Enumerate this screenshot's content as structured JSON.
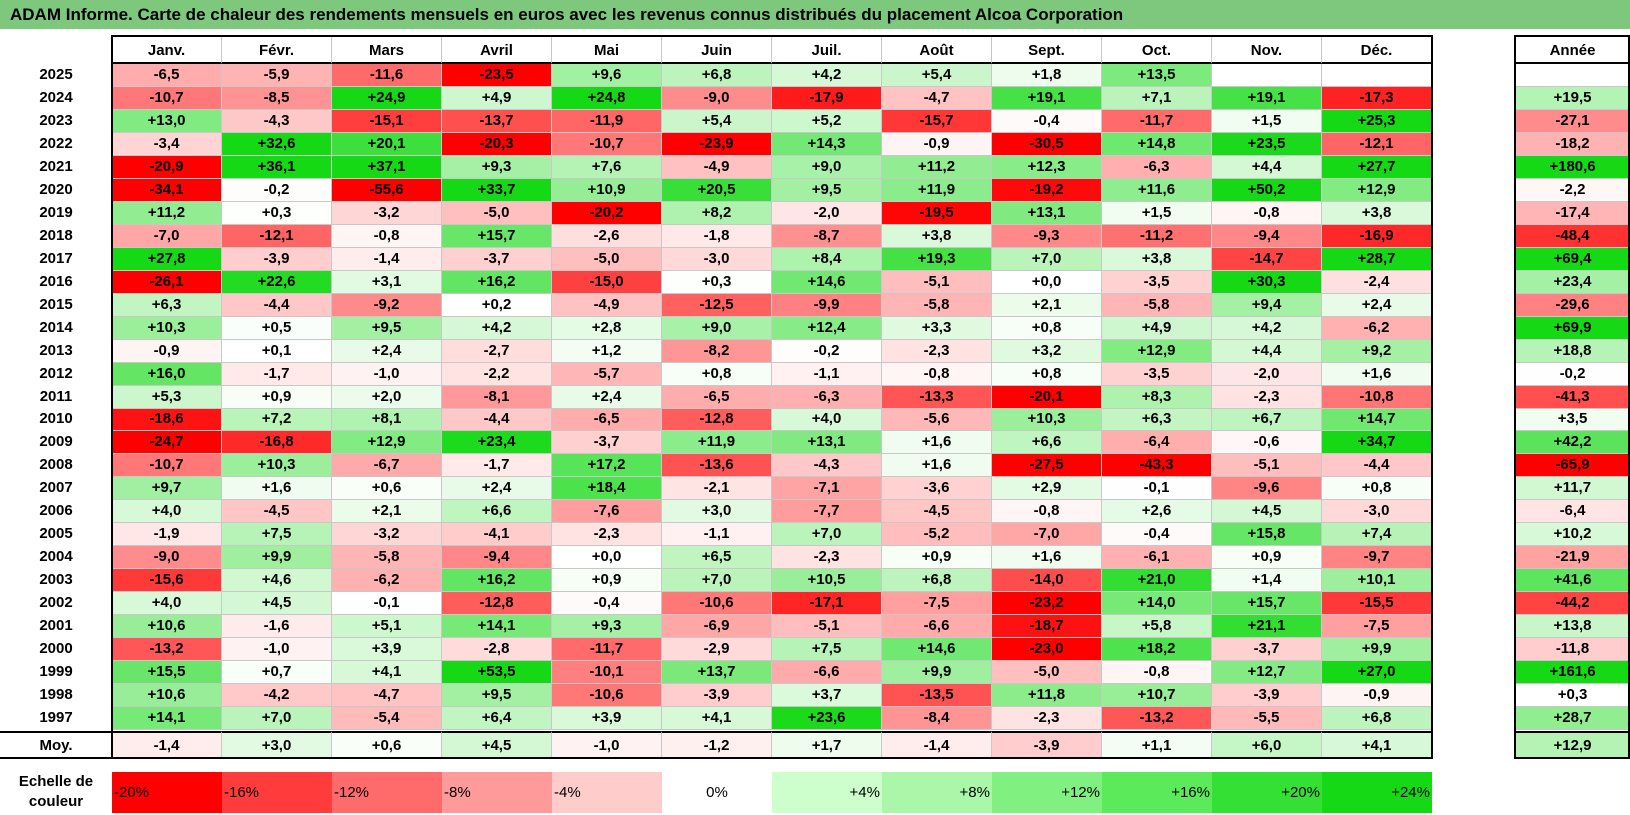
{
  "title": "ADAM Informe. Carte de chaleur des rendements mensuels en euros avec les revenus connus distribués du placement Alcoa Corporation",
  "chart_data": {
    "type": "heatmap",
    "title": "ADAM Informe. Carte de chaleur des rendements mensuels en euros avec les revenus connus distribués du placement Alcoa Corporation",
    "months": [
      "Janv.",
      "Févr.",
      "Mars",
      "Avril",
      "Mai",
      "Juin",
      "Juil.",
      "Août",
      "Sept.",
      "Oct.",
      "Nov.",
      "Déc."
    ],
    "year_header": "Année",
    "rows": [
      {
        "year": "2025",
        "values": [
          "-6,5",
          "-5,9",
          "-11,6",
          "-23,5",
          "+9,6",
          "+6,8",
          "+4,2",
          "+5,4",
          "+1,8",
          "+13,5",
          "",
          ""
        ],
        "annual": ""
      },
      {
        "year": "2024",
        "values": [
          "-10,7",
          "-8,5",
          "+24,9",
          "+4,9",
          "+24,8",
          "-9,0",
          "-17,9",
          "-4,7",
          "+19,1",
          "+7,1",
          "+19,1",
          "-17,3"
        ],
        "annual": "+19,5"
      },
      {
        "year": "2023",
        "values": [
          "+13,0",
          "-4,3",
          "-15,1",
          "-13,7",
          "-11,9",
          "+5,4",
          "+5,2",
          "-15,7",
          "-0,4",
          "-11,7",
          "+1,5",
          "+25,3"
        ],
        "annual": "-27,1"
      },
      {
        "year": "2022",
        "values": [
          "-3,4",
          "+32,6",
          "+20,1",
          "-20,3",
          "-10,7",
          "-23,9",
          "+14,3",
          "-0,9",
          "-30,5",
          "+14,8",
          "+23,5",
          "-12,1"
        ],
        "annual": "-18,2"
      },
      {
        "year": "2021",
        "values": [
          "-20,9",
          "+36,1",
          "+37,1",
          "+9,3",
          "+7,6",
          "-4,9",
          "+9,0",
          "+11,2",
          "+12,3",
          "-6,3",
          "+4,4",
          "+27,7"
        ],
        "annual": "+180,6"
      },
      {
        "year": "2020",
        "values": [
          "-34,1",
          "-0,2",
          "-55,6",
          "+33,7",
          "+10,9",
          "+20,5",
          "+9,5",
          "+11,9",
          "-19,2",
          "+11,6",
          "+50,2",
          "+12,9"
        ],
        "annual": "-2,2"
      },
      {
        "year": "2019",
        "values": [
          "+11,2",
          "+0,3",
          "-3,2",
          "-5,0",
          "-20,2",
          "+8,2",
          "-2,0",
          "-19,5",
          "+13,1",
          "+1,5",
          "-0,8",
          "+3,8"
        ],
        "annual": "-17,4"
      },
      {
        "year": "2018",
        "values": [
          "-7,0",
          "-12,1",
          "-0,8",
          "+15,7",
          "-2,6",
          "-1,8",
          "-8,7",
          "+3,8",
          "-9,3",
          "-11,2",
          "-9,4",
          "-16,9"
        ],
        "annual": "-48,4"
      },
      {
        "year": "2017",
        "values": [
          "+27,8",
          "-3,9",
          "-1,4",
          "-3,7",
          "-5,0",
          "-3,0",
          "+8,4",
          "+19,3",
          "+7,0",
          "+3,8",
          "-14,7",
          "+28,7"
        ],
        "annual": "+69,4"
      },
      {
        "year": "2016",
        "values": [
          "-26,1",
          "+22,6",
          "+3,1",
          "+16,2",
          "-15,0",
          "+0,3",
          "+14,6",
          "-5,1",
          "+0,0",
          "-3,5",
          "+30,3",
          "-2,4"
        ],
        "annual": "+23,4"
      },
      {
        "year": "2015",
        "values": [
          "+6,3",
          "-4,4",
          "-9,2",
          "+0,2",
          "-4,9",
          "-12,5",
          "-9,9",
          "-5,8",
          "+2,1",
          "-5,8",
          "+9,4",
          "+2,4"
        ],
        "annual": "-29,6"
      },
      {
        "year": "2014",
        "values": [
          "+10,3",
          "+0,5",
          "+9,5",
          "+4,2",
          "+2,8",
          "+9,0",
          "+12,4",
          "+3,3",
          "+0,8",
          "+4,9",
          "+4,2",
          "-6,2"
        ],
        "annual": "+69,9"
      },
      {
        "year": "2013",
        "values": [
          "-0,9",
          "+0,1",
          "+2,4",
          "-2,7",
          "+1,2",
          "-8,2",
          "-0,2",
          "-2,3",
          "+3,2",
          "+12,9",
          "+4,4",
          "+9,2"
        ],
        "annual": "+18,8"
      },
      {
        "year": "2012",
        "values": [
          "+16,0",
          "-1,7",
          "-1,0",
          "-2,2",
          "-5,7",
          "+0,8",
          "-1,1",
          "-0,8",
          "+0,8",
          "-3,5",
          "-2,0",
          "+1,6"
        ],
        "annual": "-0,2"
      },
      {
        "year": "2011",
        "values": [
          "+5,3",
          "+0,9",
          "+2,0",
          "-8,1",
          "+2,4",
          "-6,5",
          "-6,3",
          "-13,3",
          "-20,1",
          "+8,3",
          "-2,3",
          "-10,8"
        ],
        "annual": "-41,3"
      },
      {
        "year": "2010",
        "values": [
          "-18,6",
          "+7,2",
          "+8,1",
          "-4,4",
          "-6,5",
          "-12,8",
          "+4,0",
          "-5,6",
          "+10,3",
          "+6,3",
          "+6,7",
          "+14,7"
        ],
        "annual": "+3,5"
      },
      {
        "year": "2009",
        "values": [
          "-24,7",
          "-16,8",
          "+12,9",
          "+23,4",
          "-3,7",
          "+11,9",
          "+13,1",
          "+1,6",
          "+6,6",
          "-6,4",
          "-0,6",
          "+34,7"
        ],
        "annual": "+42,2"
      },
      {
        "year": "2008",
        "values": [
          "-10,7",
          "+10,3",
          "-6,7",
          "-1,7",
          "+17,2",
          "-13,6",
          "-4,3",
          "+1,6",
          "-27,5",
          "-43,3",
          "-5,1",
          "-4,4"
        ],
        "annual": "-65,9"
      },
      {
        "year": "2007",
        "values": [
          "+9,7",
          "+1,6",
          "+0,6",
          "+2,4",
          "+18,4",
          "-2,1",
          "-7,1",
          "-3,6",
          "+2,9",
          "-0,1",
          "-9,6",
          "+0,8"
        ],
        "annual": "+11,7"
      },
      {
        "year": "2006",
        "values": [
          "+4,0",
          "-4,5",
          "+2,1",
          "+6,6",
          "-7,6",
          "+3,0",
          "-7,7",
          "-4,5",
          "-0,8",
          "+2,6",
          "+4,5",
          "-3,0"
        ],
        "annual": "-6,4"
      },
      {
        "year": "2005",
        "values": [
          "-1,9",
          "+7,5",
          "-3,2",
          "-4,1",
          "-2,3",
          "-1,1",
          "+7,0",
          "-5,2",
          "-7,0",
          "-0,4",
          "+15,8",
          "+7,4"
        ],
        "annual": "+10,2"
      },
      {
        "year": "2004",
        "values": [
          "-9,0",
          "+9,9",
          "-5,8",
          "-9,4",
          "+0,0",
          "+6,5",
          "-2,3",
          "+0,9",
          "+1,6",
          "-6,1",
          "+0,9",
          "-9,7"
        ],
        "annual": "-21,9"
      },
      {
        "year": "2003",
        "values": [
          "-15,6",
          "+4,6",
          "-6,2",
          "+16,2",
          "+0,9",
          "+7,0",
          "+10,5",
          "+6,8",
          "-14,0",
          "+21,0",
          "+1,4",
          "+10,1"
        ],
        "annual": "+41,6"
      },
      {
        "year": "2002",
        "values": [
          "+4,0",
          "+4,5",
          "-0,1",
          "-12,8",
          "-0,4",
          "-10,6",
          "-17,1",
          "-7,5",
          "-23,2",
          "+14,0",
          "+15,7",
          "-15,5"
        ],
        "annual": "-44,2"
      },
      {
        "year": "2001",
        "values": [
          "+10,6",
          "-1,6",
          "+5,1",
          "+14,1",
          "+9,3",
          "-6,9",
          "-5,1",
          "-6,6",
          "-18,7",
          "+5,8",
          "+21,1",
          "-7,5"
        ],
        "annual": "+13,8"
      },
      {
        "year": "2000",
        "values": [
          "-13,2",
          "-1,0",
          "+3,9",
          "-2,8",
          "-11,7",
          "-2,9",
          "+7,5",
          "+14,6",
          "-23,0",
          "+18,2",
          "-3,7",
          "+9,9"
        ],
        "annual": "-11,8"
      },
      {
        "year": "1999",
        "values": [
          "+15,5",
          "+0,7",
          "+4,1",
          "+53,5",
          "-10,1",
          "+13,7",
          "-6,6",
          "+9,9",
          "-5,0",
          "-0,8",
          "+12,7",
          "+27,0"
        ],
        "annual": "+161,6"
      },
      {
        "year": "1998",
        "values": [
          "+10,6",
          "-4,2",
          "-4,7",
          "+9,5",
          "-10,6",
          "-3,9",
          "+3,7",
          "-13,5",
          "+11,8",
          "+10,7",
          "-3,9",
          "-0,9"
        ],
        "annual": "+0,3"
      },
      {
        "year": "1997",
        "values": [
          "+14,1",
          "+7,0",
          "-5,4",
          "+6,4",
          "+3,9",
          "+4,1",
          "+23,6",
          "-8,4",
          "-2,3",
          "-13,2",
          "-5,5",
          "+6,8"
        ],
        "annual": "+28,7"
      }
    ],
    "average": {
      "label": "Moy.",
      "values": [
        "-1,4",
        "+3,0",
        "+0,6",
        "+4,5",
        "-1,0",
        "-1,2",
        "+1,7",
        "-1,4",
        "-3,9",
        "+1,1",
        "+6,0",
        "+4,1"
      ],
      "annual": "+12,9"
    },
    "scale": {
      "label": "Echelle de couleur",
      "steps": [
        "-20%",
        "-16%",
        "-12%",
        "-8%",
        "-4%",
        "0%",
        "+4%",
        "+8%",
        "+12%",
        "+16%",
        "+20%",
        "+24%"
      ],
      "colors": [
        "#ff0000",
        "#ff3b3b",
        "#ff6a6a",
        "#ff9a9a",
        "#ffcccc",
        "#ffffff",
        "#ccffcc",
        "#aaf7aa",
        "#80f080",
        "#5aea5a",
        "#33e033",
        "#16d916"
      ]
    },
    "color_range": {
      "min": -20,
      "max": 24,
      "negative_color": "#ff0000",
      "positive_color": "#16d916",
      "neutral_color": "#ffffff"
    }
  }
}
